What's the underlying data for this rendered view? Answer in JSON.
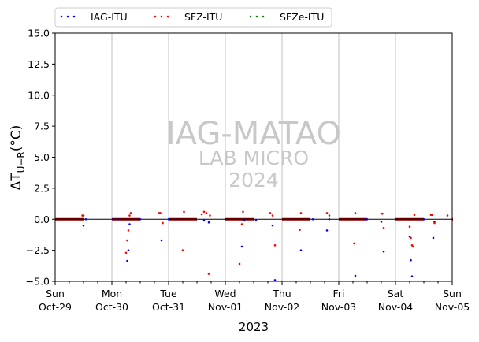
{
  "chart_data": {
    "type": "scatter",
    "xlabel": "2023",
    "ylabel": "ΔT",
    "ylabel_sub": "U−R",
    "ylabel_unit": "(°C)",
    "xlim": [
      "2023-10-29T00:00",
      "2023-11-05T00:00"
    ],
    "ylim": [
      -5.0,
      15.0
    ],
    "yticks": [
      "−5.0",
      "−2.5",
      "0.0",
      "2.5",
      "5.0",
      "7.5",
      "10.0",
      "12.5",
      "15.0"
    ],
    "yticks_values": [
      -5.0,
      -2.5,
      0.0,
      2.5,
      5.0,
      7.5,
      10.0,
      12.5,
      15.0
    ],
    "xticks": [
      {
        "date": "2023-10-29T00:00",
        "day": "Sun",
        "date_label": "Oct-29"
      },
      {
        "date": "2023-10-30T00:00",
        "day": "Mon",
        "date_label": "Oct-30"
      },
      {
        "date": "2023-10-31T00:00",
        "day": "Tue",
        "date_label": "Oct-31"
      },
      {
        "date": "2023-11-01T00:00",
        "day": "Wed",
        "date_label": "Nov-01"
      },
      {
        "date": "2023-11-02T00:00",
        "day": "Thu",
        "date_label": "Nov-02"
      },
      {
        "date": "2023-11-03T00:00",
        "day": "Fri",
        "date_label": "Nov-03"
      },
      {
        "date": "2023-11-04T00:00",
        "day": "Sat",
        "date_label": "Nov-04"
      },
      {
        "date": "2023-11-05T00:00",
        "day": "Sun",
        "date_label": "Nov-05"
      }
    ],
    "grid": "vertical-at-day-boundaries",
    "legend_placement": "top-left-outside",
    "watermark": {
      "line1": "IAG-MATAO",
      "line2": "LAB MICRO",
      "line3": "2024"
    },
    "reference_line_y": 0.0,
    "series": [
      {
        "name": "IAG-ITU",
        "color": "#0000ff",
        "points": [
          [
            "2023-10-29T12:00",
            -0.5
          ],
          [
            "2023-10-29T13:00",
            0.0
          ],
          [
            "2023-10-30T00:30",
            0.0
          ],
          [
            "2023-10-30T02:30",
            0.0
          ],
          [
            "2023-10-30T06:30",
            -3.35
          ],
          [
            "2023-10-30T07:00",
            -2.5
          ],
          [
            "2023-10-30T07:30",
            -0.4
          ],
          [
            "2023-10-30T12:00",
            0.0
          ],
          [
            "2023-10-30T21:00",
            -1.7
          ],
          [
            "2023-10-31T00:00",
            0.0
          ],
          [
            "2023-10-31T03:00",
            0.0
          ],
          [
            "2023-10-31T15:00",
            -0.1
          ],
          [
            "2023-10-31T17:00",
            -0.25
          ],
          [
            "2023-11-01T07:00",
            -2.2
          ],
          [
            "2023-11-01T08:00",
            -0.1
          ],
          [
            "2023-11-01T13:00",
            -0.1
          ],
          [
            "2023-11-01T20:00",
            -0.5
          ],
          [
            "2023-11-01T21:00",
            -4.9
          ],
          [
            "2023-11-02T04:00",
            0.0
          ],
          [
            "2023-11-02T08:00",
            -2.5
          ],
          [
            "2023-11-02T13:00",
            0.0
          ],
          [
            "2023-11-02T19:00",
            -0.9
          ],
          [
            "2023-11-02T20:00",
            0.0
          ],
          [
            "2023-11-03T07:00",
            -4.55
          ],
          [
            "2023-11-03T12:00",
            0.0
          ],
          [
            "2023-11-03T18:00",
            -0.2
          ],
          [
            "2023-11-03T19:00",
            -2.6
          ],
          [
            "2023-11-04T06:00",
            -1.4
          ],
          [
            "2023-11-04T06:30",
            -3.3
          ],
          [
            "2023-11-04T07:00",
            -4.6
          ],
          [
            "2023-11-04T12:00",
            0.0
          ],
          [
            "2023-11-04T16:00",
            -1.5
          ],
          [
            "2023-11-04T16:30",
            -0.2
          ]
        ]
      },
      {
        "name": "SFZ-ITU",
        "color": "#ff0000",
        "points": [
          [
            "2023-10-29T11:30",
            0.3
          ],
          [
            "2023-10-29T12:00",
            0.3
          ],
          [
            "2023-10-30T06:00",
            -2.7
          ],
          [
            "2023-10-30T06:30",
            -1.7
          ],
          [
            "2023-10-30T07:00",
            -0.9
          ],
          [
            "2023-10-30T07:30",
            0.3
          ],
          [
            "2023-10-30T08:00",
            0.5
          ],
          [
            "2023-10-30T20:00",
            0.5
          ],
          [
            "2023-10-30T20:30",
            0.5
          ],
          [
            "2023-10-30T21:30",
            -0.3
          ],
          [
            "2023-10-31T06:00",
            -2.5
          ],
          [
            "2023-10-31T06:30",
            0.6
          ],
          [
            "2023-10-31T14:00",
            0.4
          ],
          [
            "2023-10-31T15:00",
            0.6
          ],
          [
            "2023-10-31T16:00",
            0.5
          ],
          [
            "2023-10-31T17:00",
            -4.4
          ],
          [
            "2023-10-31T17:30",
            0.3
          ],
          [
            "2023-11-01T06:00",
            -3.6
          ],
          [
            "2023-11-01T07:00",
            -0.4
          ],
          [
            "2023-11-01T07:30",
            0.6
          ],
          [
            "2023-11-01T19:00",
            0.5
          ],
          [
            "2023-11-01T20:00",
            0.3
          ],
          [
            "2023-11-01T21:00",
            -2.1
          ],
          [
            "2023-11-02T07:30",
            -0.85
          ],
          [
            "2023-11-02T08:00",
            0.5
          ],
          [
            "2023-11-02T19:00",
            0.5
          ],
          [
            "2023-11-02T20:00",
            0.3
          ],
          [
            "2023-11-03T06:30",
            -1.95
          ],
          [
            "2023-11-03T07:00",
            0.5
          ],
          [
            "2023-11-03T18:00",
            0.45
          ],
          [
            "2023-11-03T18:30",
            0.45
          ],
          [
            "2023-11-03T19:00",
            -0.7
          ],
          [
            "2023-11-04T06:00",
            -0.6
          ],
          [
            "2023-11-04T06:30",
            -1.5
          ],
          [
            "2023-11-04T07:00",
            -2.1
          ],
          [
            "2023-11-04T07:30",
            -2.2
          ],
          [
            "2023-11-04T08:00",
            0.35
          ],
          [
            "2023-11-04T15:00",
            0.35
          ],
          [
            "2023-11-04T15:30",
            0.35
          ],
          [
            "2023-11-04T16:30",
            -0.3
          ],
          [
            "2023-11-04T22:00",
            0.3
          ]
        ]
      },
      {
        "name": "SFZe-ITU",
        "color": "#008000",
        "points": []
      }
    ],
    "segments": [
      {
        "color": "#8b0000",
        "y": 0.0,
        "from": "2023-10-29T00:00",
        "to": "2023-10-29T12:00"
      },
      {
        "color": "#8b0000",
        "y": 0.0,
        "from": "2023-10-30T00:00",
        "to": "2023-10-30T12:00"
      },
      {
        "color": "#8b0000",
        "y": 0.0,
        "from": "2023-10-31T00:00",
        "to": "2023-10-31T12:00"
      },
      {
        "color": "#8b0000",
        "y": 0.0,
        "from": "2023-11-01T00:00",
        "to": "2023-11-01T12:00"
      },
      {
        "color": "#8b0000",
        "y": 0.0,
        "from": "2023-11-02T00:00",
        "to": "2023-11-02T12:00"
      },
      {
        "color": "#8b0000",
        "y": 0.0,
        "from": "2023-11-03T00:00",
        "to": "2023-11-03T12:00"
      },
      {
        "color": "#8b0000",
        "y": 0.0,
        "from": "2023-11-04T00:00",
        "to": "2023-11-04T12:00"
      },
      {
        "color": "#8b0000",
        "y": 0.0,
        "from": "2023-11-05T00:00",
        "to": "2023-11-05T00:00"
      }
    ]
  }
}
